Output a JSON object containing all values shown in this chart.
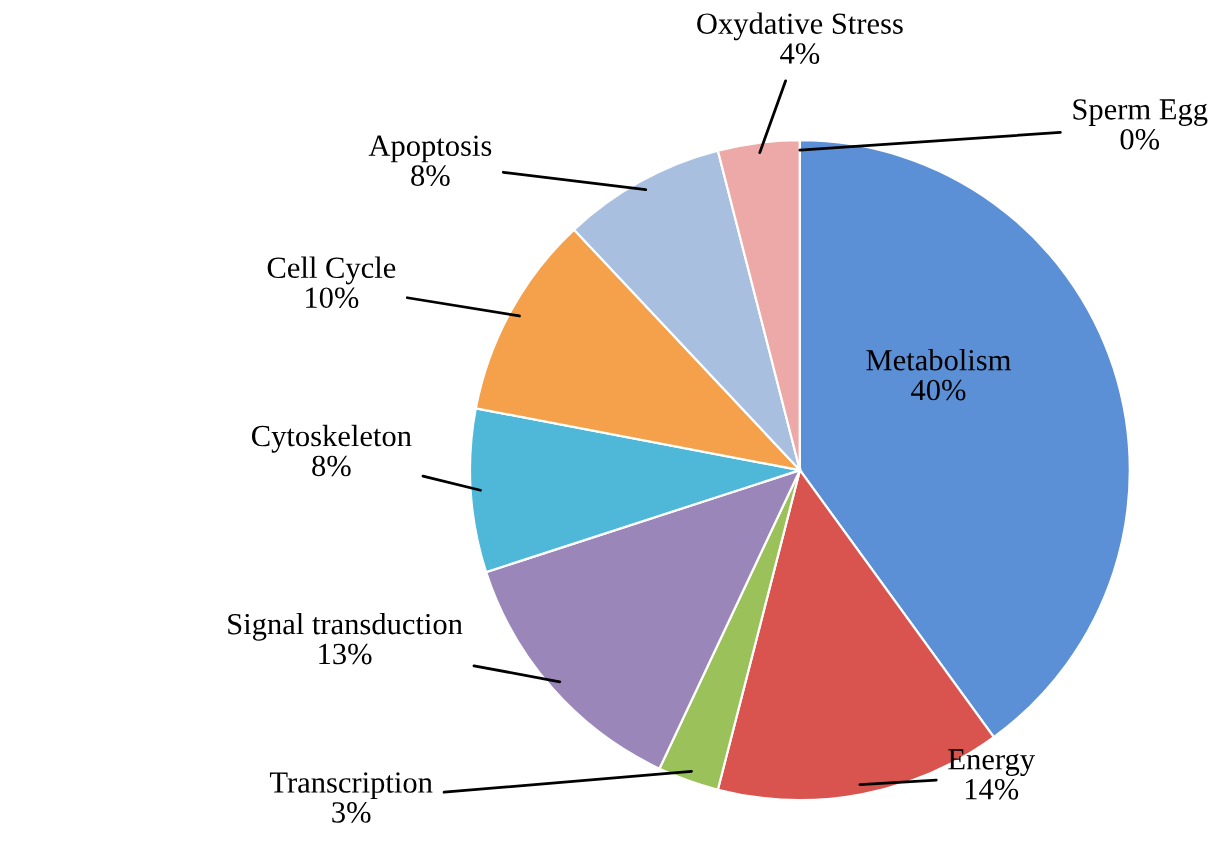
{
  "chart_data": {
    "type": "pie",
    "categories": [
      "Metabolism",
      "Energy",
      "Transcription",
      "Signal transduction",
      "Cytoskeleton",
      "Cell Cycle",
      "Apoptosis",
      "Oxydative Stress",
      "Sperm Egg"
    ],
    "values": [
      40,
      14,
      3,
      13,
      8,
      10,
      8,
      4,
      0
    ],
    "value_labels": [
      "40%",
      "14%",
      "3%",
      "13%",
      "8%",
      "10%",
      "8%",
      "4%",
      "0%"
    ],
    "colors": [
      "#5b8fd6",
      "#d9534f",
      "#9bc25a",
      "#9a86b8",
      "#4fb8d8",
      "#f5a04a",
      "#a9bfe0",
      "#eda8a8",
      "#d4e08a"
    ],
    "legend": false
  }
}
